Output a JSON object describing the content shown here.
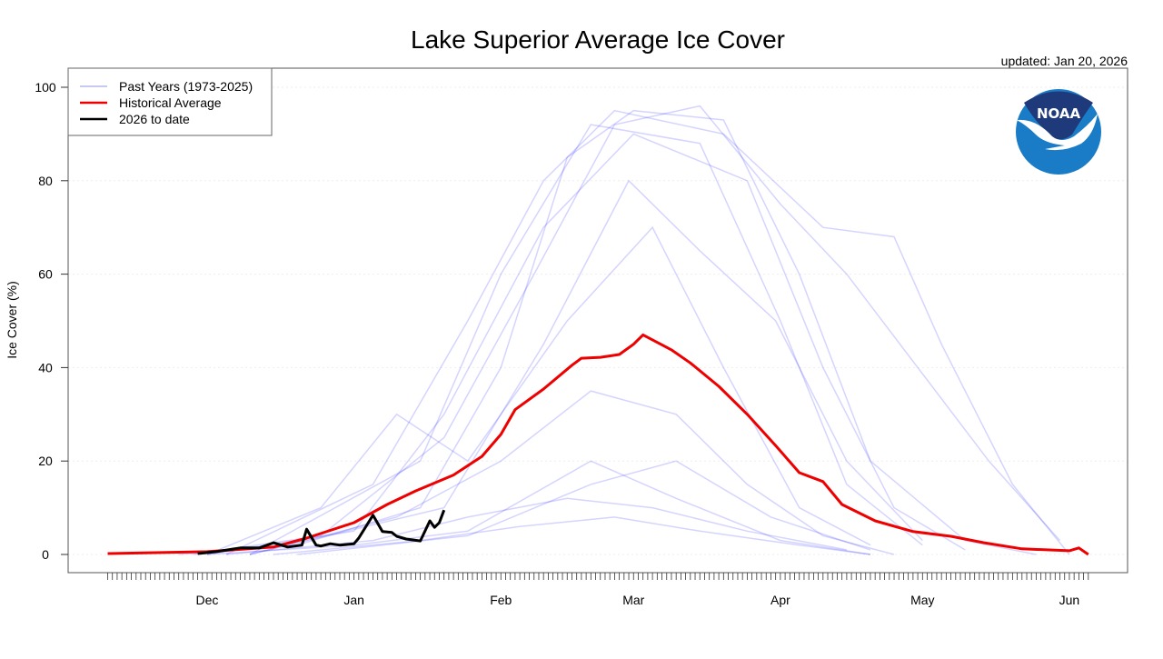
{
  "chart_data": {
    "type": "line",
    "title": "Lake Superior Average Ice Cover",
    "subtitle": "updated: Jan 20, 2026",
    "xlabel": "",
    "ylabel": "Ice Cover (%)",
    "xlim": [
      "11-10",
      "06-05"
    ],
    "ylim": [
      0,
      100
    ],
    "yticks": [
      0,
      20,
      40,
      60,
      80,
      100
    ],
    "xticks": [
      {
        "label": "Dec",
        "date": "12-01"
      },
      {
        "label": "Jan",
        "date": "01-01"
      },
      {
        "label": "Feb",
        "date": "02-01"
      },
      {
        "label": "Mar",
        "date": "03-01"
      },
      {
        "label": "Apr",
        "date": "04-01"
      },
      {
        "label": "May",
        "date": "05-01"
      },
      {
        "label": "Jun",
        "date": "06-01"
      }
    ],
    "grid": true,
    "legend_position": "top-left",
    "legend": [
      {
        "label": "Past Years (1973-2025)",
        "color": "#c8c8f5"
      },
      {
        "label": "Historical Average",
        "color": "#ee0000"
      },
      {
        "label": "2026 to date",
        "color": "#000000"
      }
    ],
    "past_years_color": "rgba(0,0,255,0.17)",
    "past_years": [
      [
        [
          "11-25",
          0
        ],
        [
          "12-20",
          2
        ],
        [
          "01-15",
          10
        ],
        [
          "02-01",
          40
        ],
        [
          "02-15",
          85
        ],
        [
          "03-01",
          95
        ],
        [
          "03-20",
          93
        ],
        [
          "04-05",
          60
        ],
        [
          "04-20",
          20
        ],
        [
          "05-10",
          3
        ],
        [
          "05-25",
          0
        ]
      ],
      [
        [
          "12-01",
          0
        ],
        [
          "01-01",
          5
        ],
        [
          "01-20",
          30
        ],
        [
          "02-10",
          70
        ],
        [
          "03-01",
          90
        ],
        [
          "03-25",
          80
        ],
        [
          "04-10",
          40
        ],
        [
          "04-25",
          10
        ],
        [
          "05-10",
          1
        ]
      ],
      [
        [
          "12-10",
          0
        ],
        [
          "01-10",
          8
        ],
        [
          "02-01",
          20
        ],
        [
          "02-20",
          35
        ],
        [
          "03-10",
          30
        ],
        [
          "03-25",
          15
        ],
        [
          "04-10",
          4
        ],
        [
          "04-25",
          0
        ]
      ],
      [
        [
          "12-05",
          0
        ],
        [
          "01-05",
          3
        ],
        [
          "01-25",
          8
        ],
        [
          "02-15",
          12
        ],
        [
          "03-05",
          10
        ],
        [
          "03-25",
          5
        ],
        [
          "04-15",
          1
        ]
      ],
      [
        [
          "11-28",
          0
        ],
        [
          "12-25",
          4
        ],
        [
          "01-20",
          25
        ],
        [
          "02-08",
          60
        ],
        [
          "02-25",
          92
        ],
        [
          "03-15",
          96
        ],
        [
          "04-01",
          75
        ],
        [
          "04-15",
          60
        ],
        [
          "04-30",
          40
        ],
        [
          "05-15",
          20
        ],
        [
          "05-30",
          3
        ]
      ],
      [
        [
          "12-15",
          0
        ],
        [
          "01-15",
          3
        ],
        [
          "02-05",
          6
        ],
        [
          "02-25",
          8
        ],
        [
          "03-15",
          5
        ],
        [
          "04-05",
          2
        ],
        [
          "04-20",
          0
        ]
      ],
      [
        [
          "12-01",
          0
        ],
        [
          "12-25",
          10
        ],
        [
          "01-10",
          30
        ],
        [
          "01-25",
          20
        ],
        [
          "02-15",
          50
        ],
        [
          "03-05",
          70
        ],
        [
          "03-20",
          40
        ],
        [
          "04-05",
          10
        ],
        [
          "04-20",
          2
        ]
      ],
      [
        [
          "12-10",
          0
        ],
        [
          "01-20",
          10
        ],
        [
          "02-10",
          45
        ],
        [
          "02-28",
          80
        ],
        [
          "03-15",
          65
        ],
        [
          "03-31",
          50
        ],
        [
          "04-15",
          20
        ],
        [
          "05-01",
          3
        ]
      ],
      [
        [
          "12-20",
          0
        ],
        [
          "01-25",
          4
        ],
        [
          "02-20",
          15
        ],
        [
          "03-10",
          20
        ],
        [
          "03-30",
          8
        ],
        [
          "04-20",
          1
        ]
      ],
      [
        [
          "12-05",
          0
        ],
        [
          "01-05",
          15
        ],
        [
          "01-25",
          50
        ],
        [
          "02-10",
          80
        ],
        [
          "02-25",
          95
        ],
        [
          "03-20",
          90
        ],
        [
          "04-10",
          70
        ],
        [
          "04-25",
          68
        ],
        [
          "05-05",
          45
        ],
        [
          "05-20",
          15
        ],
        [
          "06-01",
          0
        ]
      ],
      [
        [
          "12-01",
          0
        ],
        [
          "01-01",
          2
        ],
        [
          "01-25",
          5
        ],
        [
          "02-20",
          20
        ],
        [
          "03-10",
          12
        ],
        [
          "04-01",
          3
        ],
        [
          "04-20",
          0
        ]
      ],
      [
        [
          "12-10",
          0
        ],
        [
          "01-15",
          20
        ],
        [
          "02-01",
          60
        ],
        [
          "02-20",
          92
        ],
        [
          "03-15",
          88
        ],
        [
          "04-01",
          50
        ],
        [
          "04-15",
          15
        ],
        [
          "05-01",
          2
        ]
      ]
    ],
    "historical_average": [
      [
        "11-10",
        0.2
      ],
      [
        "12-01",
        0.6
      ],
      [
        "12-15",
        1.6
      ],
      [
        "12-22",
        3.5
      ],
      [
        "01-01",
        6.8
      ],
      [
        "01-08",
        10.7
      ],
      [
        "01-14",
        13.6
      ],
      [
        "01-22",
        17
      ],
      [
        "01-28",
        21
      ],
      [
        "02-01",
        25.7
      ],
      [
        "02-04",
        31
      ],
      [
        "02-10",
        35.4
      ],
      [
        "02-16",
        40.5
      ],
      [
        "02-18",
        42
      ],
      [
        "02-22",
        42.2
      ],
      [
        "02-26",
        42.8
      ],
      [
        "03-01",
        45
      ],
      [
        "03-03",
        47
      ],
      [
        "03-09",
        43.8
      ],
      [
        "03-13",
        41
      ],
      [
        "03-19",
        36
      ],
      [
        "03-25",
        30
      ],
      [
        "03-31",
        23.3
      ],
      [
        "04-05",
        17.5
      ],
      [
        "04-10",
        15.6
      ],
      [
        "04-14",
        10.7
      ],
      [
        "04-21",
        7.2
      ],
      [
        "04-29",
        4.9
      ],
      [
        "05-07",
        3.9
      ],
      [
        "05-14",
        2.5
      ],
      [
        "05-22",
        1.2
      ],
      [
        "06-01",
        0.8
      ],
      [
        "06-03",
        1.4
      ],
      [
        "06-05",
        0
      ]
    ],
    "current_season": [
      [
        "11-29",
        0.2
      ],
      [
        "12-03",
        0.6
      ],
      [
        "12-08",
        1.4
      ],
      [
        "12-12",
        1.4
      ],
      [
        "12-15",
        2.5
      ],
      [
        "12-18",
        1.6
      ],
      [
        "12-21",
        2.0
      ],
      [
        "12-22",
        5.4
      ],
      [
        "12-24",
        2.0
      ],
      [
        "12-25",
        1.8
      ],
      [
        "12-27",
        2.3
      ],
      [
        "12-29",
        2.0
      ],
      [
        "01-01",
        2.3
      ],
      [
        "01-02",
        3.5
      ],
      [
        "01-05",
        8.4
      ],
      [
        "01-07",
        4.9
      ],
      [
        "01-09",
        4.7
      ],
      [
        "01-10",
        3.9
      ],
      [
        "01-12",
        3.3
      ],
      [
        "01-15",
        2.9
      ],
      [
        "01-17",
        7.2
      ],
      [
        "01-18",
        5.8
      ],
      [
        "01-19",
        6.8
      ],
      [
        "01-20",
        9.5
      ]
    ]
  },
  "logo": {
    "text": "NOAA",
    "navy": "#1f3a7a",
    "blue": "#1a7cc6"
  }
}
